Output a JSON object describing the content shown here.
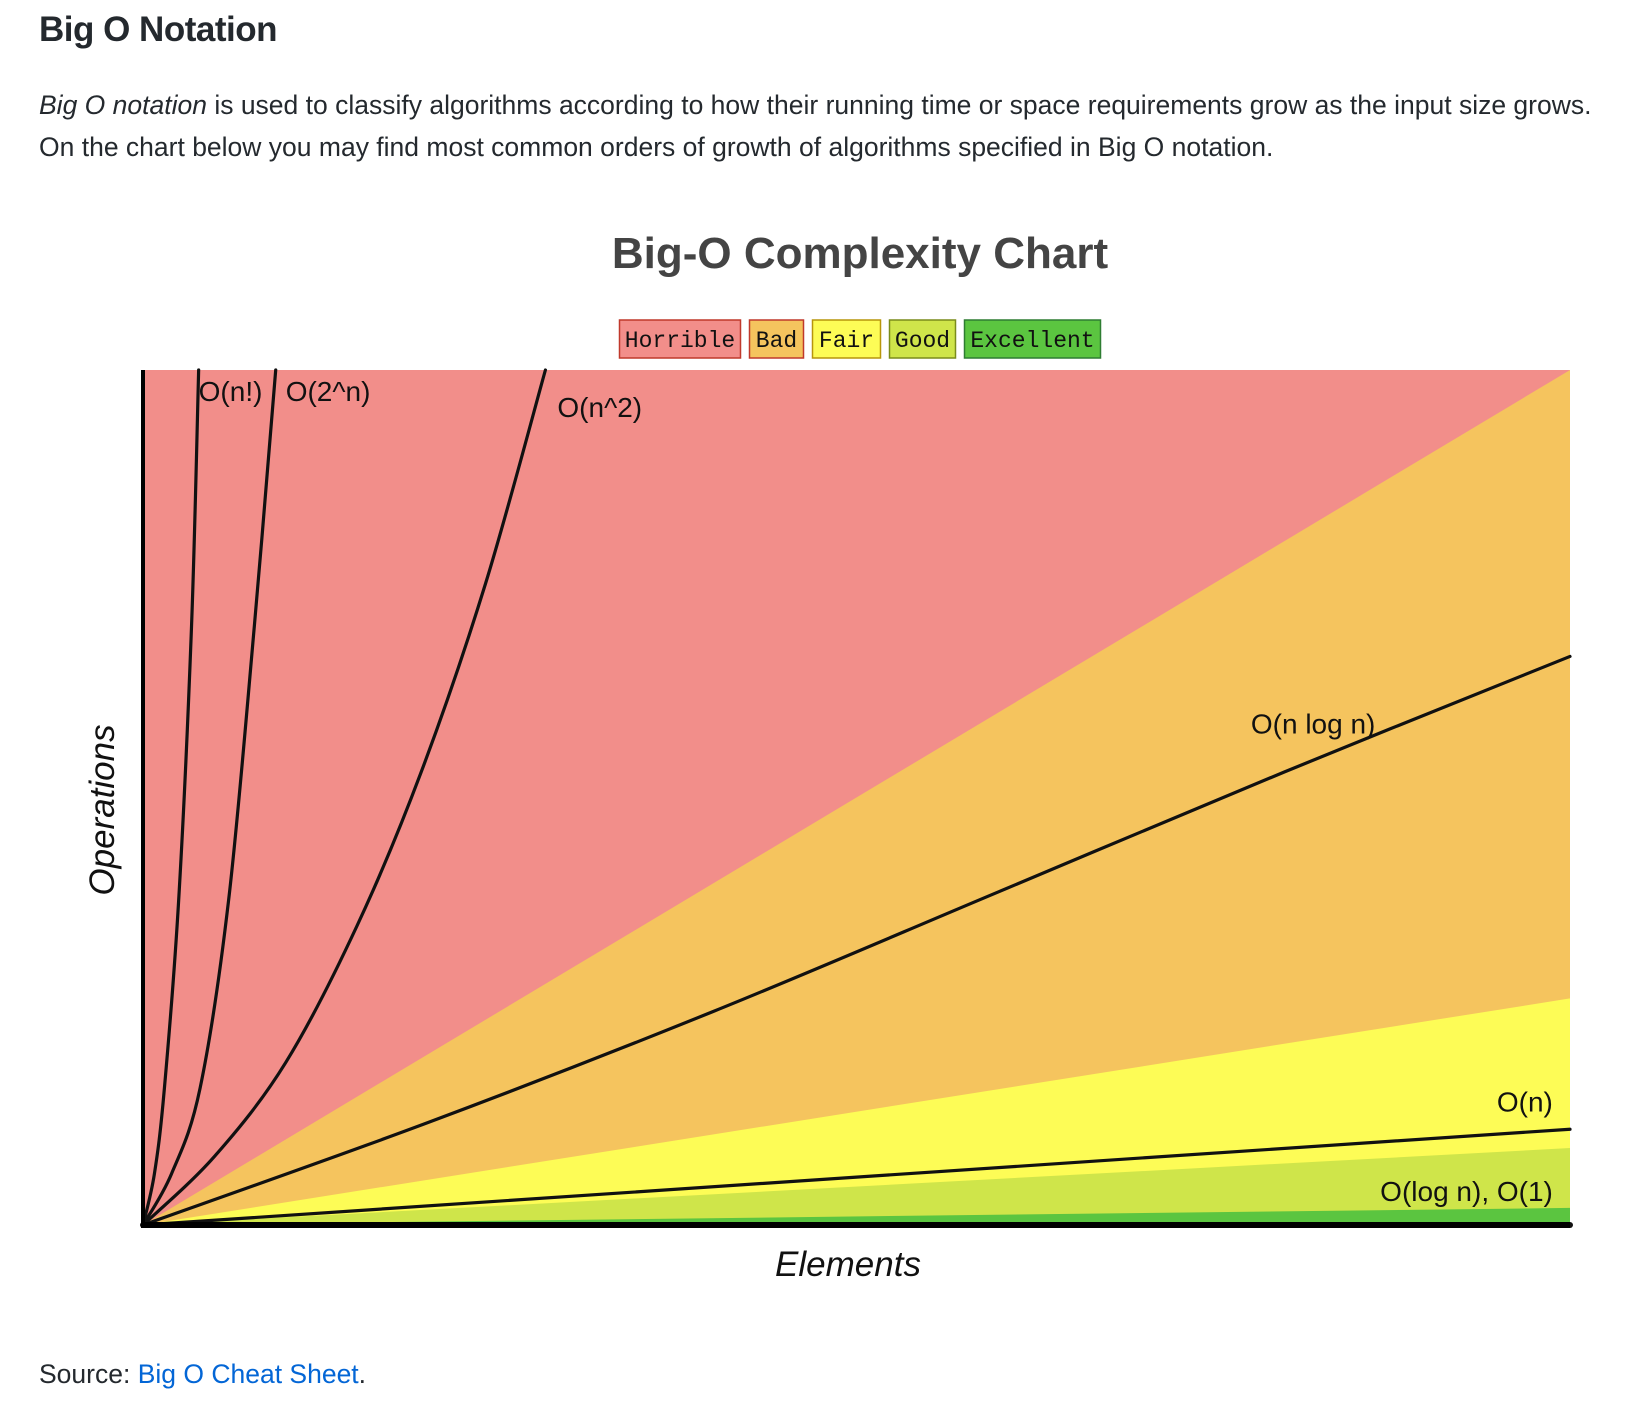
{
  "heading": "Big O Notation",
  "intro": {
    "term": "Big O notation",
    "text": " is used to classify algorithms according to how their running time or space requirements grow as the input size grows. On the chart below you may find most common orders of growth of algorithms specified in Big O notation."
  },
  "source": {
    "prefix": "Source: ",
    "link_text": "Big O Cheat Sheet",
    "suffix": "."
  },
  "chart_data": {
    "type": "line",
    "title": "Big-O Complexity Chart",
    "xlabel": "Elements",
    "ylabel": "Operations",
    "xlim": [
      0,
      100
    ],
    "ylim": [
      0,
      100
    ],
    "legend_placement": "top-center",
    "legend": [
      {
        "label": "Horrible",
        "color": "#f28e8a",
        "border": "#c0392b"
      },
      {
        "label": "Bad",
        "color": "#f5c45e",
        "border": "#c0392b"
      },
      {
        "label": "Fair",
        "color": "#fdfc56",
        "border": "#b7950b"
      },
      {
        "label": "Good",
        "color": "#cfe54a",
        "border": "#7a8c1b"
      },
      {
        "label": "Excellent",
        "color": "#5bc540",
        "border": "#2e7d32"
      }
    ],
    "regions": [
      {
        "band": "Horrible",
        "color": "#f28e8a",
        "upper_at_x_max": 100
      },
      {
        "band": "Bad",
        "color": "#f5c45e",
        "upper_at_x_max": 100
      },
      {
        "band": "Fair",
        "color": "#fdfc56",
        "upper_at_x_max": 26.5
      },
      {
        "band": "Good",
        "color": "#cfe54a",
        "upper_at_x_max": 9
      },
      {
        "band": "Excellent",
        "color": "#5bc540",
        "upper_at_x_max": 2
      }
    ],
    "series": [
      {
        "name": "O(n!)",
        "x": [
          0,
          0.8,
          1.5,
          2.5,
          3.4,
          3.9
        ],
        "y": [
          0,
          6,
          16,
          38,
          70,
          100
        ]
      },
      {
        "name": "O(2^n)",
        "x": [
          0,
          2,
          4,
          6,
          7.8,
          9.3
        ],
        "y": [
          0,
          6,
          16,
          38,
          70,
          100
        ]
      },
      {
        "name": "O(n^2)",
        "x": [
          0,
          5,
          10,
          15,
          19.5,
          24,
          28.2
        ],
        "y": [
          0,
          8,
          19,
          35,
          53,
          75,
          100
        ]
      },
      {
        "name": "O(n log n)",
        "x": [
          0,
          20,
          40,
          60,
          80,
          100
        ],
        "y": [
          0,
          12,
          25,
          39,
          53,
          66.5
        ]
      },
      {
        "name": "O(n)",
        "x": [
          0,
          100
        ],
        "y": [
          0,
          11.2
        ]
      },
      {
        "name": "O(log n), O(1)",
        "x": [
          0,
          100
        ],
        "y": [
          0,
          0
        ]
      }
    ]
  }
}
